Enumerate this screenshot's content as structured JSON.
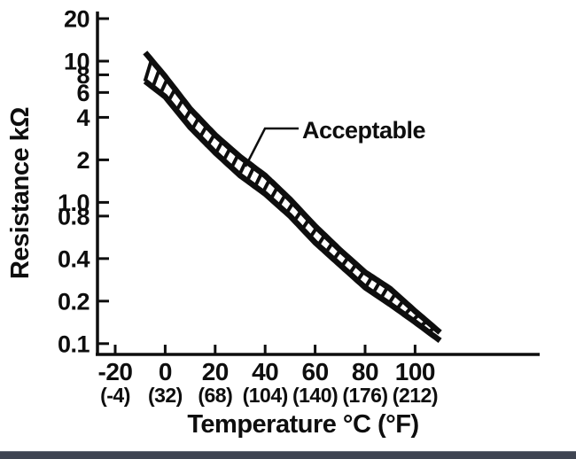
{
  "page": {
    "background": "#ffffff",
    "ink_color": "#0e0e0e",
    "bottom_bar_color": "#3f4552"
  },
  "chart_data": {
    "type": "line",
    "subtype": "tolerance-band",
    "description": "Thermistor resistance versus temperature; hatched band between upper and lower limit curves marks the acceptable range",
    "title": "",
    "xlabel": "Temperature °C (°F)",
    "ylabel": "Resistance kΩ",
    "y_scale": "log",
    "ylim": [
      0.1,
      20
    ],
    "xlim_c": [
      -27,
      150
    ],
    "grid": false,
    "legend": "none",
    "x_ticks_c": [
      -20,
      0,
      20,
      40,
      60,
      80,
      100
    ],
    "x_tick_labels_c": [
      "-20",
      "0",
      "20",
      "40",
      "60",
      "80",
      "100"
    ],
    "x_tick_labels_f": [
      "(-4)",
      "(32)",
      "(68)",
      "(104)",
      "(140)",
      "(176)",
      "(212)"
    ],
    "y_ticks": [
      20,
      10,
      8,
      6,
      4,
      2,
      1,
      0.8,
      0.4,
      0.2,
      0.1
    ],
    "y_tick_labels": [
      "20",
      "10",
      "8",
      "6",
      "4",
      "2",
      "1.0",
      "0.8",
      "0.4",
      "0.2",
      "0.1"
    ],
    "annotation": {
      "label": "Acceptable"
    },
    "band_fill": "hatched",
    "series": [
      {
        "name": "acceptable-upper-limit",
        "x": [
          -8,
          0,
          10,
          20,
          30,
          40,
          50,
          60,
          70,
          80,
          90,
          100,
          110
        ],
        "y": [
          11.5,
          7.8,
          4.6,
          3.0,
          2.1,
          1.55,
          1.05,
          0.68,
          0.46,
          0.32,
          0.245,
          0.17,
          0.12
        ]
      },
      {
        "name": "acceptable-lower-limit",
        "x": [
          -8,
          0,
          10,
          20,
          30,
          40,
          50,
          60,
          70,
          80,
          90,
          100,
          110
        ],
        "y": [
          7.2,
          5.6,
          3.4,
          2.25,
          1.55,
          1.15,
          0.8,
          0.52,
          0.36,
          0.25,
          0.19,
          0.142,
          0.105
        ]
      }
    ]
  }
}
